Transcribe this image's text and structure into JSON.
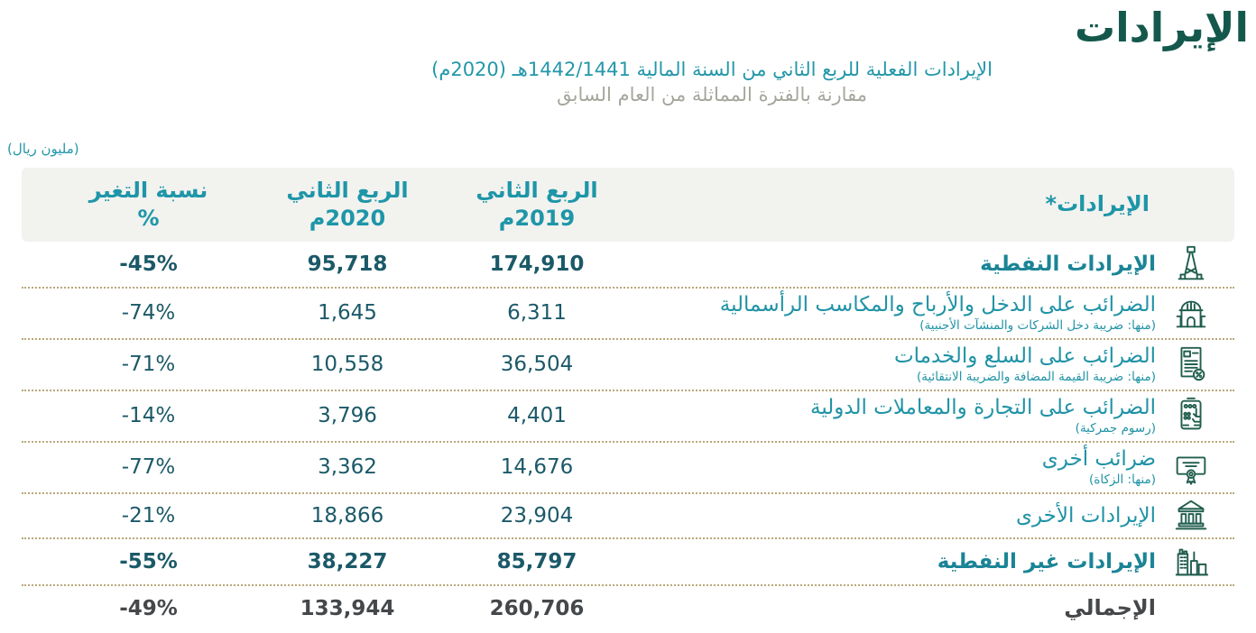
{
  "page": {
    "title": "الإيرادات",
    "subtitle1": "الإيرادات الفعلية للربع الثاني من السنة المالية 1442/1441هـ (2020م)",
    "subtitle2": "مقارنة بالفترة المماثلة من العام السابق",
    "unit_note": "(مليون ريال)"
  },
  "table": {
    "columns": {
      "revenues": "الإيرادات*",
      "q2019_l1": "الربع الثاني",
      "q2019_l2": "2019م",
      "q2020_l1": "الربع الثاني",
      "q2020_l2": "2020م",
      "change_l1": "نسبة التغير",
      "change_l2": "%"
    },
    "rows": [
      {
        "label": "الإيرادات النفطية",
        "sublabel": "",
        "icon": "oil-derrick",
        "q2_2019": "174,910",
        "q2_2020": "95,718",
        "change": "-45%",
        "emphasis": "bold"
      },
      {
        "label": "الضرائب على الدخل والأرباح والمكاسب الرأسمالية",
        "sublabel": "(منها: ضريبة دخل الشركات والمنشآت الأجنبية)",
        "icon": "dome-building",
        "q2_2019": "6,311",
        "q2_2020": "1,645",
        "change": "-74%",
        "emphasis": "none"
      },
      {
        "label": "الضرائب على السلع والخدمات",
        "sublabel": "(منها: ضريبة القيمة المضافة والضريبة الانتقائية)",
        "icon": "invoice-percent",
        "q2_2019": "36,504",
        "q2_2020": "10,558",
        "change": "-71%",
        "emphasis": "none"
      },
      {
        "label": "الضرائب على التجارة والمعاملات الدولية",
        "sublabel": "(رسوم جمركية)",
        "icon": "pos-terminal",
        "q2_2019": "4,401",
        "q2_2020": "3,796",
        "change": "-14%",
        "emphasis": "none"
      },
      {
        "label": "ضرائب أخرى",
        "sublabel": "(منها: الزكاة)",
        "icon": "certificate",
        "q2_2019": "14,676",
        "q2_2020": "3,362",
        "change": "-77%",
        "emphasis": "none"
      },
      {
        "label": "الإيرادات الأخرى",
        "sublabel": "",
        "icon": "bank-building",
        "q2_2019": "23,904",
        "q2_2020": "18,866",
        "change": "-21%",
        "emphasis": "none"
      },
      {
        "label": "الإيرادات غير النفطية",
        "sublabel": "",
        "icon": "city-buildings",
        "q2_2019": "85,797",
        "q2_2020": "38,227",
        "change": "-55%",
        "emphasis": "bold"
      },
      {
        "label": "الإجمالي",
        "sublabel": "",
        "icon": null,
        "q2_2019": "260,706",
        "q2_2020": "133,944",
        "change": "-49%",
        "emphasis": "total"
      }
    ]
  },
  "chart_data": {
    "type": "table",
    "title": "الإيرادات",
    "unit": "مليون ريال",
    "categories": [
      "الإيرادات النفطية",
      "الضرائب على الدخل والأرباح والمكاسب الرأسمالية",
      "الضرائب على السلع والخدمات",
      "الضرائب على التجارة والمعاملات الدولية",
      "ضرائب أخرى",
      "الإيرادات الأخرى",
      "الإيرادات غير النفطية",
      "الإجمالي"
    ],
    "series": [
      {
        "name": "الربع الثاني 2019م",
        "values": [
          174910,
          6311,
          36504,
          4401,
          14676,
          23904,
          85797,
          260706
        ]
      },
      {
        "name": "الربع الثاني 2020م",
        "values": [
          95718,
          1645,
          10558,
          3796,
          3362,
          18866,
          38227,
          133944
        ]
      },
      {
        "name": "نسبة التغير %",
        "values": [
          -45,
          -74,
          -71,
          -14,
          -77,
          -21,
          -55,
          -49
        ]
      }
    ]
  },
  "colors": {
    "title_green": "#14584c",
    "teal": "#2397a9",
    "subtitle_gray": "#a6a69d",
    "header_bg": "#f2f2ef",
    "separator_tan": "#b9a77a",
    "number_dark_teal": "#1b5968",
    "total_gray": "#45484a",
    "icon_green": "#215e4e"
  }
}
